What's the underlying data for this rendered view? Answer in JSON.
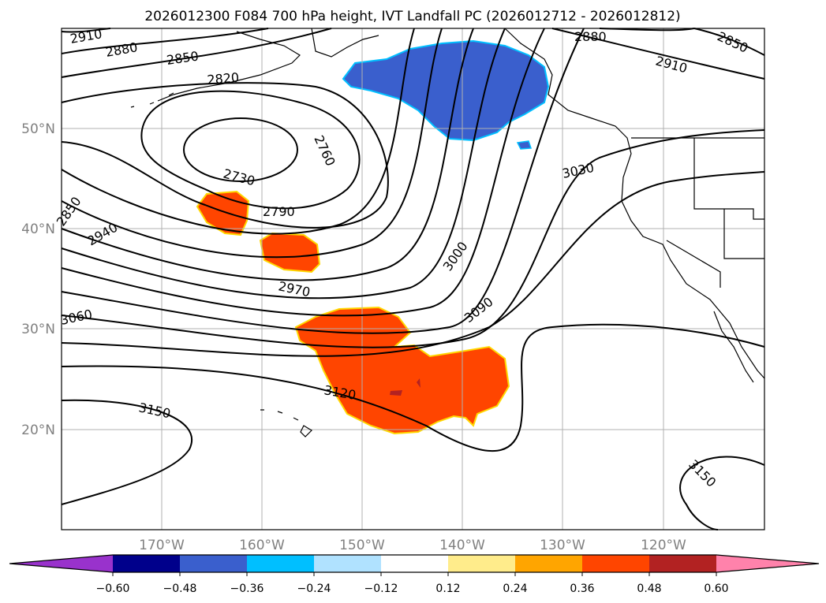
{
  "title": "2026012300 F084 700 hPa height, IVT Landfall PC (2026012712 - 2026012812)",
  "chart_data": {
    "type": "map-contour",
    "title": "2026012300 F084 700 hPa height, IVT Landfall PC (2026012712 - 2026012812)",
    "lon_range": [
      -180,
      -110
    ],
    "lat_range": [
      10,
      60
    ],
    "grid": true,
    "lon_ticks": [
      "170°W",
      "160°W",
      "150°W",
      "140°W",
      "130°W",
      "120°W"
    ],
    "lat_ticks": [
      "50°N",
      "40°N",
      "30°N",
      "20°N"
    ],
    "contour_labels": [
      "2910",
      "2880",
      "2850",
      "2820",
      "2760",
      "2730",
      "2790",
      "2850",
      "2940",
      "2970",
      "3000",
      "3030",
      "3060",
      "3090",
      "3120",
      "3150",
      "3150",
      "2880",
      "2850",
      "2910"
    ],
    "colorbar": {
      "ticks": [
        "−0.60",
        "−0.48",
        "−0.36",
        "−0.24",
        "−0.12",
        "0.12",
        "0.24",
        "0.36",
        "0.48",
        "0.60"
      ],
      "colors": [
        "#9932cc",
        "#00008b",
        "#3a5fcd",
        "#00bfff",
        "#b0e2ff",
        "#ffffff",
        "#ffec8b",
        "#ffa500",
        "#ff4500",
        "#b22222",
        "#ff82ab"
      ],
      "extend": "both"
    },
    "shaded_regions": [
      {
        "sign": "negative",
        "class": "-0.48 to -0.36",
        "color": "#3a5fcd",
        "location": "Gulf of Alaska"
      },
      {
        "sign": "positive",
        "class": "0.36 to 0.48",
        "color": "#ff4500",
        "location": "subtropical central Pacific"
      }
    ]
  }
}
